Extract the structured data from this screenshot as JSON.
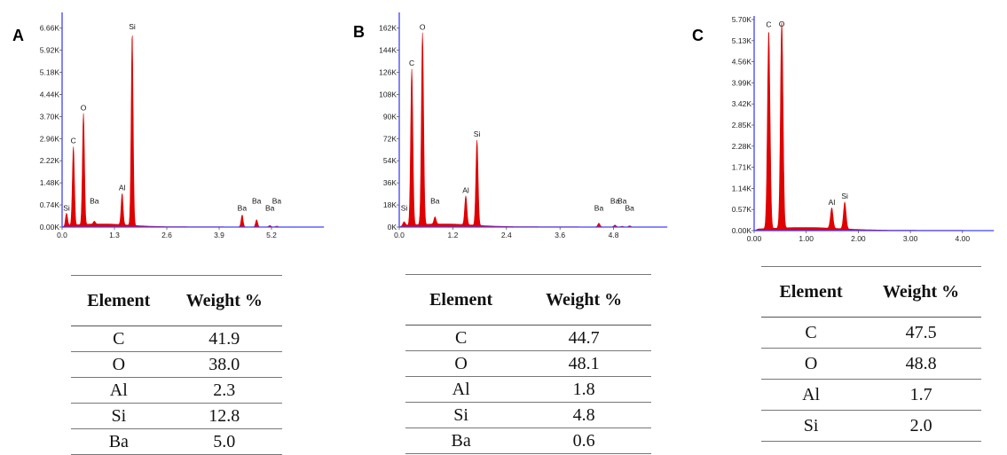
{
  "panels": [
    {
      "letter": "A"
    },
    {
      "letter": "B"
    },
    {
      "letter": "C"
    }
  ],
  "chart_data": [
    {
      "type": "line",
      "panel": "A",
      "spectrum_color": "#e00000",
      "axis_color": "#4040ff",
      "yticks": [
        "0.00K",
        "0.74K",
        "1.48K",
        "2.22K",
        "2.96K",
        "3.70K",
        "4.44K",
        "5.18K",
        "5.92K",
        "6.66K"
      ],
      "ylim": [
        0,
        7.4
      ],
      "xticks": [
        "0.0",
        "1.3",
        "2.6",
        "3.9",
        "5.2"
      ],
      "xlim": [
        0,
        6.5
      ],
      "peaks": [
        {
          "x": 0.11,
          "y": 0.42,
          "label": "Si"
        },
        {
          "x": 0.28,
          "y": 2.75,
          "label": "C"
        },
        {
          "x": 0.53,
          "y": 3.9,
          "label": "O"
        },
        {
          "x": 0.8,
          "y": 0.1,
          "label": "Ba"
        },
        {
          "x": 1.49,
          "y": 1.1,
          "label": "Al"
        },
        {
          "x": 1.74,
          "y": 6.75,
          "label": "Si"
        },
        {
          "x": 4.47,
          "y": 0.42,
          "label": "Ba"
        },
        {
          "x": 4.83,
          "y": 0.25,
          "label": "Ba"
        },
        {
          "x": 5.16,
          "y": 0.05,
          "label": "Ba"
        },
        {
          "x": 5.33,
          "y": 0.03,
          "label": "Ba"
        }
      ]
    },
    {
      "type": "line",
      "panel": "B",
      "spectrum_color": "#e00000",
      "axis_color": "#4040ff",
      "yticks": [
        "0K",
        "18K",
        "36K",
        "54K",
        "72K",
        "90K",
        "108K",
        "126K",
        "144K",
        "162K"
      ],
      "ylim": [
        0,
        176
      ],
      "xticks": [
        "0.0",
        "1.2",
        "2.4",
        "3.6",
        "4.8"
      ],
      "xlim": [
        0,
        6.0
      ],
      "peaks": [
        {
          "x": 0.11,
          "y": 3,
          "label": "Si"
        },
        {
          "x": 0.28,
          "y": 130,
          "label": "C"
        },
        {
          "x": 0.52,
          "y": 160,
          "label": "O"
        },
        {
          "x": 0.8,
          "y": 6,
          "label": "Ba"
        },
        {
          "x": 1.49,
          "y": 24,
          "label": "Al"
        },
        {
          "x": 1.74,
          "y": 71,
          "label": "Si"
        },
        {
          "x": 4.47,
          "y": 3,
          "label": "Ba"
        },
        {
          "x": 4.83,
          "y": 1.5,
          "label": "Ba"
        },
        {
          "x": 5.16,
          "y": 1,
          "label": "Ba"
        },
        {
          "x": 4.99,
          "y": 0.5,
          "label": "Ba"
        }
      ]
    },
    {
      "type": "line",
      "panel": "C",
      "spectrum_color": "#e00000",
      "axis_color": "#4040ff",
      "yticks": [
        "0.00K",
        "0.57K",
        "1.14K",
        "1.71K",
        "2.28K",
        "2.85K",
        "3.42K",
        "3.99K",
        "4.56K",
        "5.13K",
        "5.70K"
      ],
      "ylim": [
        0,
        5.7
      ],
      "xticks": [
        "0.00",
        "1.00",
        "2.00",
        "3.00",
        "4.00"
      ],
      "xlim": [
        0,
        4.6
      ],
      "peaks": [
        {
          "x": 0.28,
          "y": 5.35,
          "label": "C"
        },
        {
          "x": 0.53,
          "y": 5.55,
          "label": "O"
        },
        {
          "x": 1.49,
          "y": 0.55,
          "label": "Al"
        },
        {
          "x": 1.74,
          "y": 0.72,
          "label": "Si"
        }
      ]
    }
  ],
  "tables": [
    {
      "headers": [
        "Element",
        "Weight %"
      ],
      "rows": [
        [
          "C",
          "41.9"
        ],
        [
          "O",
          "38.0"
        ],
        [
          "Al",
          "2.3"
        ],
        [
          "Si",
          "12.8"
        ],
        [
          "Ba",
          "5.0"
        ]
      ]
    },
    {
      "headers": [
        "Element",
        "Weight %"
      ],
      "rows": [
        [
          "C",
          "44.7"
        ],
        [
          "O",
          "48.1"
        ],
        [
          "Al",
          "1.8"
        ],
        [
          "Si",
          "4.8"
        ],
        [
          "Ba",
          "0.6"
        ]
      ]
    },
    {
      "headers": [
        "Element",
        "Weight %"
      ],
      "rows": [
        [
          "C",
          "47.5"
        ],
        [
          "O",
          "48.8"
        ],
        [
          "Al",
          "1.7"
        ],
        [
          "Si",
          "2.0"
        ]
      ]
    }
  ]
}
